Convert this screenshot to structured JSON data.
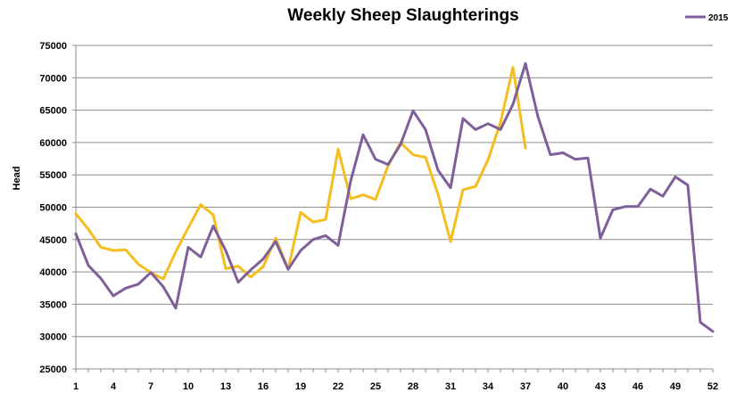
{
  "chart_data": {
    "type": "line",
    "title": "Weekly Sheep Slaughterings",
    "xlabel": "",
    "ylabel": "Head",
    "ylim": [
      25000,
      75000
    ],
    "yticks": [
      25000,
      30000,
      35000,
      40000,
      45000,
      50000,
      55000,
      60000,
      65000,
      70000,
      75000
    ],
    "xlim": [
      1,
      52
    ],
    "xticks": [
      1,
      4,
      7,
      10,
      13,
      16,
      19,
      22,
      25,
      28,
      31,
      34,
      37,
      40,
      43,
      46,
      49,
      52
    ],
    "grid": "horizontal",
    "legend_position": "top-right",
    "series": [
      {
        "name": "2015",
        "color": "#7f5f9a",
        "x": [
          1,
          2,
          3,
          4,
          5,
          6,
          7,
          8,
          9,
          10,
          11,
          12,
          13,
          14,
          15,
          16,
          17,
          18,
          19,
          20,
          21,
          22,
          23,
          24,
          25,
          26,
          27,
          28,
          29,
          30,
          31,
          32,
          33,
          34,
          35,
          36,
          37,
          38,
          39,
          40,
          41,
          42,
          43,
          44,
          45,
          46,
          47,
          48,
          49,
          50,
          51,
          52
        ],
        "values": [
          45900,
          41000,
          39000,
          36300,
          37500,
          38100,
          39900,
          37700,
          34400,
          43800,
          42300,
          47100,
          43300,
          38400,
          40300,
          42000,
          44700,
          40400,
          43300,
          45000,
          45600,
          44100,
          54000,
          61200,
          57400,
          56600,
          59700,
          64900,
          62000,
          55700,
          53000,
          63700,
          62000,
          62900,
          62000,
          65900,
          72200,
          64000,
          58100,
          58400,
          57400,
          57600,
          45200,
          49600,
          50100,
          50100,
          52800,
          51700,
          54700,
          53400,
          32200,
          30800
        ]
      },
      {
        "color": "#f5bd1f",
        "x": [
          1,
          2,
          3,
          4,
          5,
          6,
          7,
          8,
          9,
          10,
          11,
          12,
          13,
          14,
          15,
          16,
          17,
          18,
          19,
          20,
          21,
          22,
          23,
          24,
          25,
          26,
          27,
          28,
          29,
          30,
          31,
          32,
          33,
          34,
          35,
          36,
          37
        ],
        "values": [
          49000,
          46600,
          43800,
          43300,
          43400,
          41200,
          39900,
          38900,
          43100,
          46800,
          50400,
          48800,
          40500,
          40900,
          39200,
          40800,
          45200,
          40400,
          49200,
          47700,
          48100,
          59000,
          51300,
          51900,
          51200,
          56400,
          60000,
          58100,
          57700,
          52000,
          44700,
          52700,
          53200,
          57300,
          63100,
          71600,
          59100
        ]
      }
    ]
  }
}
